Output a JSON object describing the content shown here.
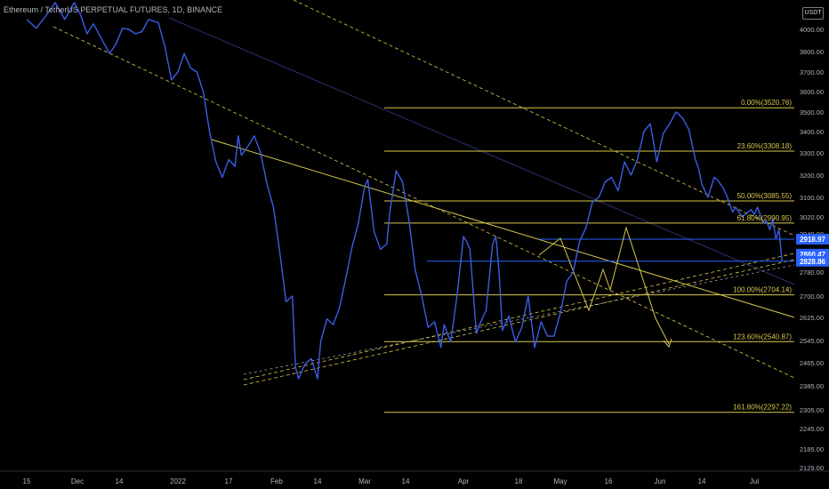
{
  "header": {
    "symbol_title": "Ethereum / TetherUS PERPETUAL FUTURES, 1D, BINANCE",
    "currency_badge": "USDT"
  },
  "colors": {
    "background": "#000000",
    "price_line": "#3b5de7",
    "fib_lines": "#d8c94a",
    "trendlines": "#d8c94a",
    "projection": "#d8c94a",
    "channel_line": "#2a2f6b",
    "price_marker": "#2962ff",
    "axis_text": "#b2b5be"
  },
  "chart_data": {
    "type": "line",
    "title": "Ethereum / TetherUS PERPETUAL FUTURES, 1D, BINANCE",
    "ylabel": "USDT",
    "ylim": [
      2100,
      4060
    ],
    "y_ticks": [
      "4000.00",
      "3800.00",
      "3700.00",
      "3600.00",
      "3500.00",
      "3400.00",
      "3300.00",
      "3200.00",
      "3100.00",
      "3020.00",
      "2940.00",
      "2860.00",
      "2780.00",
      "2700.00",
      "2625.00",
      "2545.00",
      "2465.00",
      "2385.00",
      "2305.00",
      "2245.00",
      "2185.00",
      "2129.00"
    ],
    "x_ticks": [
      "15",
      "Dec",
      "14",
      "2022",
      "17",
      "Feb",
      "14",
      "Mar",
      "14",
      "Apr",
      "18",
      "May",
      "16",
      "Jun",
      "14",
      "Jul"
    ],
    "x_tick_dates": [
      "2021-11-15",
      "2021-12-01",
      "2021-12-14",
      "2022-01-01",
      "2022-01-17",
      "2022-02-01",
      "2022-02-14",
      "2022-03-01",
      "2022-03-14",
      "2022-04-01",
      "2022-04-18",
      "2022-05-01",
      "2022-05-16",
      "2022-06-01",
      "2022-06-14",
      "2022-07-01"
    ],
    "series": [
      {
        "values_note": "ETHUSDT perpetual daily close (estimated from chart)",
        "points": [
          [
            "2021-11-15",
            4090
          ],
          [
            "2021-11-18",
            4010
          ],
          [
            "2021-11-21",
            4120
          ],
          [
            "2021-11-24",
            4240
          ],
          [
            "2021-11-27",
            4090
          ],
          [
            "2021-11-30",
            4240
          ],
          [
            "2021-12-02",
            4130
          ],
          [
            "2021-12-04",
            3960
          ],
          [
            "2021-12-06",
            4050
          ],
          [
            "2021-12-09",
            3890
          ],
          [
            "2021-12-11",
            3790
          ],
          [
            "2021-12-13",
            3870
          ],
          [
            "2021-12-15",
            4010
          ],
          [
            "2021-12-17",
            4000
          ],
          [
            "2021-12-19",
            3960
          ],
          [
            "2021-12-21",
            3980
          ],
          [
            "2021-12-23",
            4090
          ],
          [
            "2021-12-26",
            4060
          ],
          [
            "2021-12-28",
            3850
          ],
          [
            "2021-12-30",
            3660
          ],
          [
            "2022-01-01",
            3700
          ],
          [
            "2022-01-03",
            3790
          ],
          [
            "2022-01-05",
            3720
          ],
          [
            "2022-01-07",
            3700
          ],
          [
            "2022-01-09",
            3600
          ],
          [
            "2022-01-11",
            3400
          ],
          [
            "2022-01-13",
            3260
          ],
          [
            "2022-01-15",
            3190
          ],
          [
            "2022-01-17",
            3270
          ],
          [
            "2022-01-19",
            3240
          ],
          [
            "2022-01-20",
            3380
          ],
          [
            "2022-01-21",
            3290
          ],
          [
            "2022-01-23",
            3330
          ],
          [
            "2022-01-25",
            3380
          ],
          [
            "2022-01-27",
            3300
          ],
          [
            "2022-01-29",
            3160
          ],
          [
            "2022-01-31",
            3060
          ],
          [
            "2022-02-02",
            2870
          ],
          [
            "2022-02-04",
            2680
          ],
          [
            "2022-02-06",
            2700
          ],
          [
            "2022-02-07",
            2450
          ],
          [
            "2022-02-08",
            2410
          ],
          [
            "2022-02-10",
            2460
          ],
          [
            "2022-02-12",
            2480
          ],
          [
            "2022-02-14",
            2410
          ],
          [
            "2022-02-15",
            2540
          ],
          [
            "2022-02-17",
            2620
          ],
          [
            "2022-02-19",
            2600
          ],
          [
            "2022-02-21",
            2660
          ],
          [
            "2022-02-23",
            2760
          ],
          [
            "2022-02-25",
            2890
          ],
          [
            "2022-02-27",
            2990
          ],
          [
            "2022-03-01",
            3150
          ],
          [
            "2022-03-02",
            3180
          ],
          [
            "2022-03-04",
            2950
          ],
          [
            "2022-03-06",
            2880
          ],
          [
            "2022-03-08",
            2900
          ],
          [
            "2022-03-09",
            3040
          ],
          [
            "2022-03-11",
            3220
          ],
          [
            "2022-03-13",
            3170
          ],
          [
            "2022-03-15",
            3010
          ],
          [
            "2022-03-17",
            2790
          ],
          [
            "2022-03-19",
            2700
          ],
          [
            "2022-03-21",
            2590
          ],
          [
            "2022-03-23",
            2610
          ],
          [
            "2022-03-25",
            2520
          ],
          [
            "2022-03-26",
            2600
          ],
          [
            "2022-03-28",
            2540
          ],
          [
            "2022-03-30",
            2700
          ],
          [
            "2022-04-01",
            2930
          ],
          [
            "2022-04-02",
            2910
          ],
          [
            "2022-04-03",
            2880
          ],
          [
            "2022-04-05",
            2570
          ],
          [
            "2022-04-06",
            2600
          ],
          [
            "2022-04-08",
            2650
          ],
          [
            "2022-04-10",
            2900
          ],
          [
            "2022-04-11",
            2930
          ],
          [
            "2022-04-12",
            2780
          ],
          [
            "2022-04-13",
            2580
          ],
          [
            "2022-04-15",
            2630
          ],
          [
            "2022-04-17",
            2540
          ],
          [
            "2022-04-19",
            2590
          ],
          [
            "2022-04-21",
            2700
          ],
          [
            "2022-04-23",
            2520
          ],
          [
            "2022-04-25",
            2610
          ],
          [
            "2022-04-27",
            2560
          ],
          [
            "2022-04-29",
            2560
          ],
          [
            "2022-05-01",
            2640
          ],
          [
            "2022-05-03",
            2750
          ],
          [
            "2022-05-05",
            2780
          ],
          [
            "2022-05-07",
            2910
          ],
          [
            "2022-05-09",
            2970
          ],
          [
            "2022-05-11",
            3080
          ],
          [
            "2022-05-13",
            3100
          ],
          [
            "2022-05-15",
            3170
          ],
          [
            "2022-05-17",
            3190
          ],
          [
            "2022-05-19",
            3130
          ],
          [
            "2022-05-21",
            3260
          ],
          [
            "2022-05-23",
            3200
          ],
          [
            "2022-05-25",
            3270
          ],
          [
            "2022-05-27",
            3400
          ],
          [
            "2022-05-29",
            3440
          ],
          [
            "2022-05-31",
            3260
          ],
          [
            "2022-06-02",
            3390
          ],
          [
            "2022-06-04",
            3440
          ],
          [
            "2022-06-06",
            3500
          ],
          [
            "2022-06-08",
            3470
          ],
          [
            "2022-06-10",
            3410
          ],
          [
            "2022-06-12",
            3270
          ],
          [
            "2022-06-13",
            3230
          ],
          [
            "2022-06-14",
            3160
          ],
          [
            "2022-06-16",
            3100
          ],
          [
            "2022-06-18",
            3190
          ],
          [
            "2022-06-19",
            3180
          ],
          [
            "2022-06-21",
            3140
          ],
          [
            "2022-06-22",
            3110
          ],
          [
            "2022-06-24",
            3040
          ],
          [
            "2022-06-25",
            3060
          ],
          [
            "2022-06-27",
            3020
          ],
          [
            "2022-06-28",
            3030
          ],
          [
            "2022-06-30",
            3050
          ],
          [
            "2022-07-01",
            3030
          ],
          [
            "2022-07-02",
            3060
          ],
          [
            "2022-07-04",
            2990
          ],
          [
            "2022-07-05",
            3000
          ],
          [
            "2022-07-06",
            2960
          ],
          [
            "2022-07-07",
            3010
          ],
          [
            "2022-07-08",
            2920
          ],
          [
            "2022-07-09",
            2960
          ],
          [
            "2022-07-10",
            2830
          ]
        ]
      }
    ],
    "fibonacci_levels": [
      {
        "label": "0.00%(3520.76)",
        "value": 3520.76
      },
      {
        "label": "23.60%(3308.18)",
        "value": 3308.18
      },
      {
        "label": "50.00%(3085.55)",
        "value": 3085.55
      },
      {
        "label": "61.80%(2990.95)",
        "value": 2990.95
      },
      {
        "label": "100.00%(2704.14)",
        "value": 2704.14
      },
      {
        "label": "123.60%(2540.87)",
        "value": 2540.87
      },
      {
        "label": "161.80%(2297.22)",
        "value": 2297.22
      }
    ],
    "price_markers": [
      {
        "label": "2918.97",
        "value": 2918.97
      },
      {
        "label": "2860.47",
        "value": 2860.47
      },
      {
        "label": "2828.86",
        "value": 2828.86
      }
    ],
    "grid": false,
    "legend": "none"
  }
}
